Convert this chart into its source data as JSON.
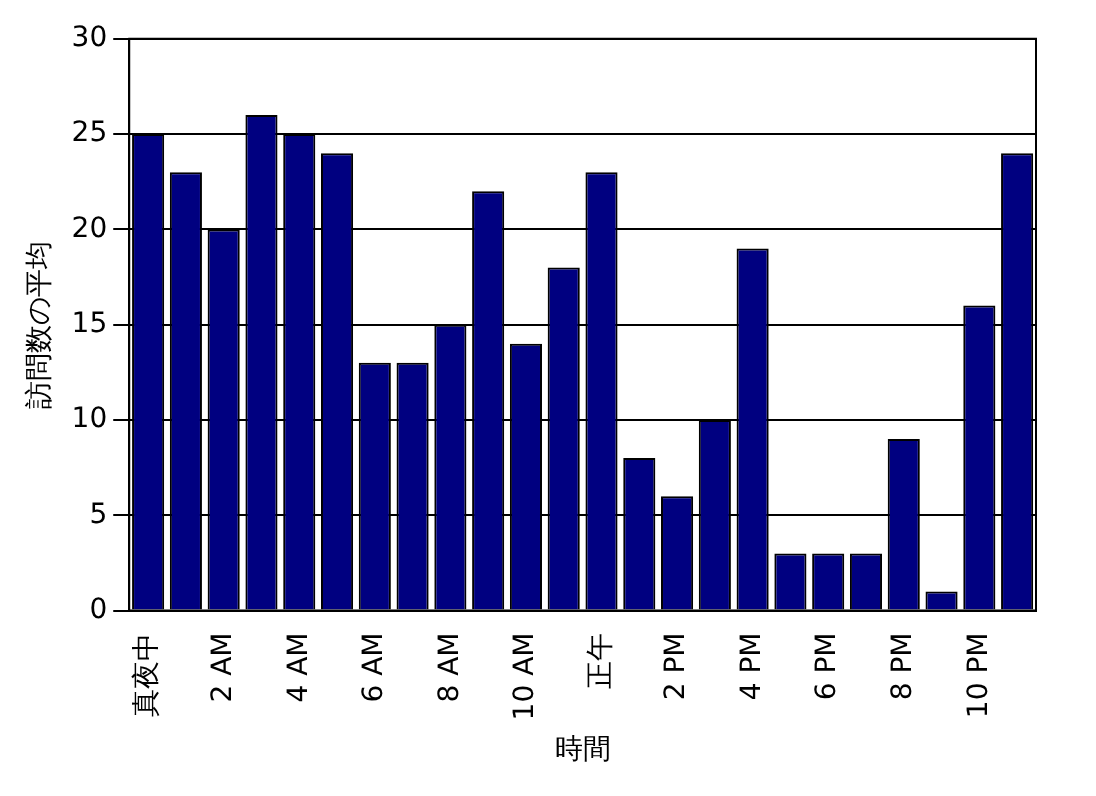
{
  "chart_data": {
    "type": "bar",
    "xlabel": "時間",
    "ylabel": "訪問数の平均",
    "categories": [
      "真夜中",
      null,
      "2 AM",
      null,
      "4 AM",
      null,
      "6 AM",
      null,
      "8 AM",
      null,
      "10 AM",
      null,
      "正午",
      null,
      "2 PM",
      null,
      "4 PM",
      null,
      "6 PM",
      null,
      "8 PM",
      null,
      "10 PM",
      null
    ],
    "values": [
      25,
      23,
      20,
      26,
      25,
      24,
      13,
      13,
      15,
      22,
      14,
      18,
      23,
      8,
      6,
      10,
      19,
      3,
      3,
      3,
      9,
      1,
      16,
      24
    ],
    "color": "#000080",
    "ylim": [
      0,
      30
    ],
    "yticks": [
      0,
      5,
      10,
      15,
      20,
      25,
      30
    ],
    "grid": "y",
    "legend": false
  }
}
